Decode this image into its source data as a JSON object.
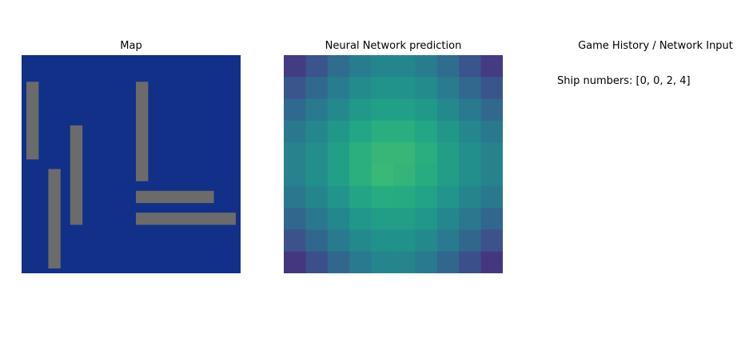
{
  "chart_data": [
    {
      "type": "heatmap",
      "title": "Map",
      "grid_size": 10,
      "ocean_color": "#123087",
      "ship_color": "#6b6b6b",
      "ships": [
        {
          "row": 1,
          "col": 0,
          "length": 4,
          "orientation": "vertical"
        },
        {
          "row": 3,
          "col": 2,
          "length": 5,
          "orientation": "vertical"
        },
        {
          "row": 5,
          "col": 1,
          "length": 5,
          "orientation": "vertical"
        },
        {
          "row": 1,
          "col": 5,
          "length": 5,
          "orientation": "vertical"
        },
        {
          "row": 6,
          "col": 5,
          "length": 4,
          "orientation": "horizontal"
        },
        {
          "row": 7,
          "col": 5,
          "length": 5,
          "orientation": "horizontal"
        }
      ]
    },
    {
      "type": "heatmap",
      "title": "Neural Network prediction",
      "colormap": "viridis",
      "grid_size": 10,
      "values": [
        [
          0.22,
          0.33,
          0.44,
          0.52,
          0.57,
          0.57,
          0.52,
          0.44,
          0.33,
          0.22
        ],
        [
          0.33,
          0.43,
          0.52,
          0.6,
          0.64,
          0.64,
          0.6,
          0.52,
          0.43,
          0.33
        ],
        [
          0.43,
          0.51,
          0.59,
          0.67,
          0.71,
          0.71,
          0.67,
          0.59,
          0.51,
          0.43
        ],
        [
          0.5,
          0.58,
          0.66,
          0.74,
          0.78,
          0.78,
          0.74,
          0.66,
          0.58,
          0.5
        ],
        [
          0.55,
          0.62,
          0.71,
          0.79,
          0.83,
          0.83,
          0.78,
          0.7,
          0.62,
          0.55
        ],
        [
          0.55,
          0.62,
          0.71,
          0.79,
          0.84,
          0.82,
          0.77,
          0.7,
          0.62,
          0.55
        ],
        [
          0.5,
          0.57,
          0.65,
          0.73,
          0.77,
          0.76,
          0.72,
          0.65,
          0.57,
          0.5
        ],
        [
          0.42,
          0.5,
          0.58,
          0.66,
          0.7,
          0.7,
          0.66,
          0.58,
          0.5,
          0.42
        ],
        [
          0.32,
          0.42,
          0.51,
          0.59,
          0.63,
          0.63,
          0.59,
          0.51,
          0.42,
          0.32
        ],
        [
          0.2,
          0.31,
          0.42,
          0.51,
          0.56,
          0.56,
          0.51,
          0.42,
          0.31,
          0.2
        ]
      ]
    }
  ],
  "history_panel": {
    "title": "Game History / Network Input",
    "ship_numbers": "Ship numbers: [0, 0, 2, 4]"
  }
}
